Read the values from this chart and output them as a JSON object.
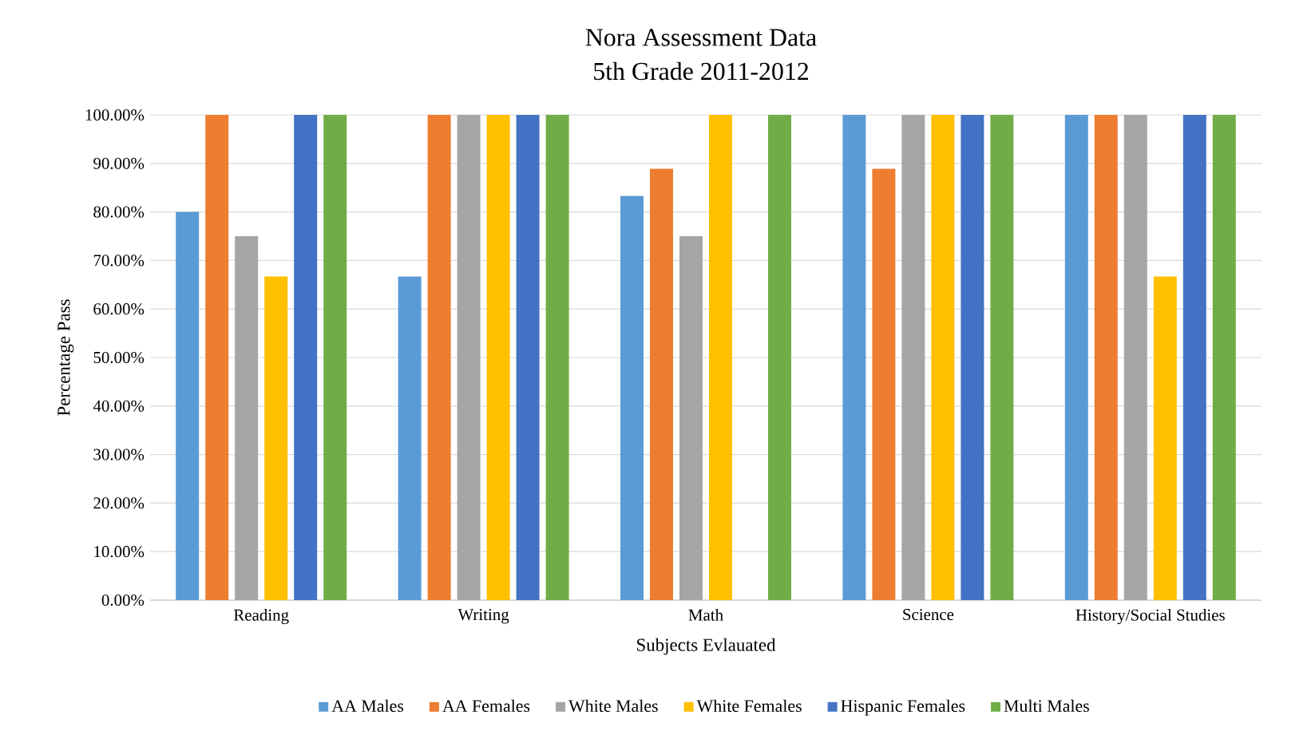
{
  "chart_data": {
    "type": "bar",
    "title": "Nora Assessment Data",
    "subtitle": "5th Grade 2011-2012",
    "xlabel": "Subjects Evlauated",
    "ylabel": "Percentage Pass",
    "categories": [
      "Reading",
      "Writing",
      "Math",
      "Science",
      "History/Social Studies"
    ],
    "series": [
      {
        "name": "AA Males",
        "color": "#5b9bd5",
        "values": [
          80,
          66.7,
          83.3,
          100,
          100
        ]
      },
      {
        "name": "AA Females",
        "color": "#ed7d31",
        "values": [
          100,
          100,
          88.9,
          88.9,
          100
        ]
      },
      {
        "name": "White Males",
        "color": "#a5a5a5",
        "values": [
          75,
          100,
          75,
          100,
          100
        ]
      },
      {
        "name": "White Females",
        "color": "#ffc000",
        "values": [
          66.7,
          100,
          100,
          100,
          66.7
        ]
      },
      {
        "name": "Hispanic Females",
        "color": "#4472c4",
        "values": [
          100,
          100,
          null,
          100,
          100
        ]
      },
      {
        "name": "Multi Males",
        "color": "#70ad47",
        "values": [
          100,
          100,
          100,
          100,
          100
        ]
      }
    ],
    "ylim": [
      0,
      100
    ],
    "yticks": [
      {
        "value": 0,
        "label": "0.00%"
      },
      {
        "value": 10,
        "label": "10.00%"
      },
      {
        "value": 20,
        "label": "20.00%"
      },
      {
        "value": 30,
        "label": "30.00%"
      },
      {
        "value": 40,
        "label": "40.00%"
      },
      {
        "value": 50,
        "label": "50.00%"
      },
      {
        "value": 60,
        "label": "60.00%"
      },
      {
        "value": 70,
        "label": "70.00%"
      },
      {
        "value": 80,
        "label": "80.00%"
      },
      {
        "value": 90,
        "label": "90.00%"
      },
      {
        "value": 100,
        "label": "100.00%"
      }
    ],
    "grid": "y",
    "legend": "bottom"
  }
}
